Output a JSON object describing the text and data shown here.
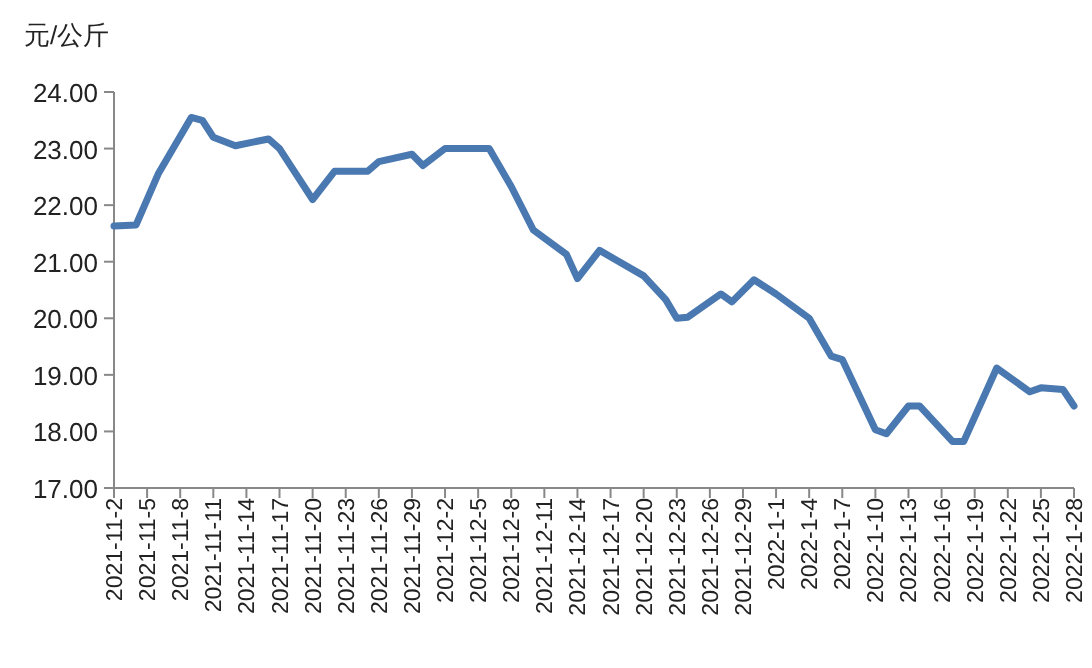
{
  "chart_data": {
    "type": "line",
    "ylabel": "元/公斤",
    "x": [
      "2021-11-02",
      "2021-11-04",
      "2021-11-06",
      "2021-11-09",
      "2021-11-10",
      "2021-11-11",
      "2021-11-13",
      "2021-11-16",
      "2021-11-17",
      "2021-11-18",
      "2021-11-20",
      "2021-11-22",
      "2021-11-25",
      "2021-11-26",
      "2021-11-29",
      "2021-11-30",
      "2021-12-02",
      "2021-12-06",
      "2021-12-08",
      "2021-12-10",
      "2021-12-13",
      "2021-12-14",
      "2021-12-16",
      "2021-12-20",
      "2021-12-22",
      "2021-12-23",
      "2021-12-24",
      "2021-12-27",
      "2021-12-28",
      "2021-12-30",
      "2022-01-01",
      "2022-01-04",
      "2022-01-06",
      "2022-01-07",
      "2022-01-10",
      "2022-01-11",
      "2022-01-13",
      "2022-01-14",
      "2022-01-17",
      "2022-01-18",
      "2022-01-21",
      "2022-01-24",
      "2022-01-25",
      "2022-01-27",
      "2022-01-28"
    ],
    "series": [
      {
        "color": "#4a78b0",
        "values": [
          21.63,
          21.65,
          22.55,
          23.55,
          23.5,
          23.2,
          23.05,
          23.17,
          23.0,
          22.7,
          22.1,
          22.6,
          22.6,
          22.77,
          22.9,
          22.7,
          23.0,
          23.0,
          22.33,
          21.56,
          21.13,
          20.7,
          21.2,
          20.75,
          20.33,
          20.0,
          20.02,
          20.43,
          20.29,
          20.68,
          20.43,
          20.0,
          19.33,
          19.27,
          18.03,
          17.96,
          18.45,
          18.45,
          17.82,
          17.82,
          19.12,
          18.7,
          18.77,
          18.74,
          18.45
        ]
      }
    ],
    "xlim": [
      "2021-11-02",
      "2022-01-28"
    ],
    "xticks": [
      {
        "value": "2021-11-02",
        "label": "2021-11-2"
      },
      {
        "value": "2021-11-05",
        "label": "2021-11-5"
      },
      {
        "value": "2021-11-08",
        "label": "2021-11-8"
      },
      {
        "value": "2021-11-11",
        "label": "2021-11-11"
      },
      {
        "value": "2021-11-14",
        "label": "2021-11-14"
      },
      {
        "value": "2021-11-17",
        "label": "2021-11-17"
      },
      {
        "value": "2021-11-20",
        "label": "2021-11-20"
      },
      {
        "value": "2021-11-23",
        "label": "2021-11-23"
      },
      {
        "value": "2021-11-26",
        "label": "2021-11-26"
      },
      {
        "value": "2021-11-29",
        "label": "2021-11-29"
      },
      {
        "value": "2021-12-02",
        "label": "2021-12-2"
      },
      {
        "value": "2021-12-05",
        "label": "2021-12-5"
      },
      {
        "value": "2021-12-08",
        "label": "2021-12-8"
      },
      {
        "value": "2021-12-11",
        "label": "2021-12-11"
      },
      {
        "value": "2021-12-14",
        "label": "2021-12-14"
      },
      {
        "value": "2021-12-17",
        "label": "2021-12-17"
      },
      {
        "value": "2021-12-20",
        "label": "2021-12-20"
      },
      {
        "value": "2021-12-23",
        "label": "2021-12-23"
      },
      {
        "value": "2021-12-26",
        "label": "2021-12-26"
      },
      {
        "value": "2021-12-29",
        "label": "2021-12-29"
      },
      {
        "value": "2022-01-01",
        "label": "2022-1-1"
      },
      {
        "value": "2022-01-04",
        "label": "2022-1-4"
      },
      {
        "value": "2022-01-07",
        "label": "2022-1-7"
      },
      {
        "value": "2022-01-10",
        "label": "2022-1-10"
      },
      {
        "value": "2022-01-13",
        "label": "2022-1-13"
      },
      {
        "value": "2022-01-16",
        "label": "2022-1-16"
      },
      {
        "value": "2022-01-19",
        "label": "2022-1-19"
      },
      {
        "value": "2022-01-22",
        "label": "2022-1-22"
      },
      {
        "value": "2022-01-25",
        "label": "2022-1-25"
      },
      {
        "value": "2022-01-28",
        "label": "2022-1-28"
      }
    ],
    "ylim": [
      17,
      24
    ],
    "yticks": [
      {
        "value": 17,
        "label": "17.00"
      },
      {
        "value": 18,
        "label": "18.00"
      },
      {
        "value": 19,
        "label": "19.00"
      },
      {
        "value": 20,
        "label": "20.00"
      },
      {
        "value": 21,
        "label": "21.00"
      },
      {
        "value": 22,
        "label": "22.00"
      },
      {
        "value": 23,
        "label": "23.00"
      },
      {
        "value": 24,
        "label": "24.00"
      }
    ],
    "grid": false,
    "marker": "none",
    "line_style": "solid"
  }
}
